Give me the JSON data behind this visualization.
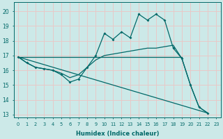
{
  "xlabel": "Humidex (Indice chaleur)",
  "bg_color": "#cce9e8",
  "grid_color": "#e8c8c8",
  "line_color": "#006868",
  "xlim": [
    -0.5,
    23.5
  ],
  "ylim": [
    12.8,
    20.6
  ],
  "yticks": [
    13,
    14,
    15,
    16,
    17,
    18,
    19,
    20
  ],
  "xticks": [
    0,
    1,
    2,
    3,
    4,
    5,
    6,
    7,
    8,
    9,
    10,
    11,
    12,
    13,
    14,
    15,
    16,
    17,
    18,
    19,
    20,
    21,
    22,
    23
  ],
  "line1_x": [
    0,
    1,
    2,
    3,
    4,
    5,
    6,
    7,
    8,
    9,
    10,
    11,
    12,
    13,
    14,
    15,
    16,
    17,
    18,
    19,
    20,
    21,
    22
  ],
  "line1_y": [
    16.9,
    16.5,
    16.2,
    16.1,
    16.0,
    15.7,
    15.2,
    15.4,
    16.2,
    17.0,
    18.5,
    18.1,
    18.6,
    18.2,
    19.8,
    19.4,
    19.8,
    19.4,
    17.5,
    16.8,
    15.0,
    13.5,
    13.1
  ],
  "line2_x": [
    0,
    1,
    2,
    3,
    4,
    5,
    6,
    7,
    8,
    9,
    10,
    11,
    12,
    13,
    14,
    15,
    16,
    17,
    18,
    19,
    20,
    21,
    22
  ],
  "line2_y": [
    16.9,
    16.5,
    16.2,
    16.1,
    16.0,
    15.8,
    15.5,
    15.7,
    16.2,
    16.7,
    17.0,
    17.1,
    17.2,
    17.3,
    17.4,
    17.5,
    17.5,
    17.6,
    17.7,
    16.8,
    15.0,
    13.5,
    13.1
  ],
  "line3_x": [
    0,
    22
  ],
  "line3_y": [
    16.9,
    13.1
  ],
  "line4_x": [
    0,
    19
  ],
  "line4_y": [
    16.9,
    16.9
  ]
}
